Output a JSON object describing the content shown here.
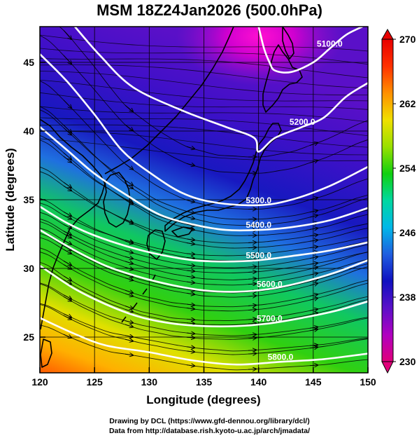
{
  "title": "MSM 18Z24Jan2026 (500.0hPa)",
  "x_axis": {
    "label": "Longitude (degrees)",
    "ticks": [
      "120",
      "125",
      "130",
      "135",
      "140",
      "145",
      "150"
    ],
    "range": [
      120,
      150
    ]
  },
  "y_axis": {
    "label": "Latitude  (degrees)",
    "ticks": [
      "25",
      "30",
      "35",
      "40",
      "45"
    ],
    "range": [
      22.4,
      47.6
    ]
  },
  "colorbar": {
    "ticks": [
      "270",
      "262",
      "254",
      "246",
      "238",
      "230"
    ],
    "range": [
      230,
      270
    ],
    "colors": [
      "#e0007a",
      "#b000c0",
      "#5a10c8",
      "#1010c0",
      "#1f5ee0",
      "#00b8e8",
      "#00d8a0",
      "#10d010",
      "#9ae000",
      "#f0e000",
      "#ff9000",
      "#ff3000",
      "#e80000"
    ]
  },
  "contours": [
    {
      "label": "5100.0",
      "points": [
        [
          140,
          47.6
        ],
        [
          140.5,
          46
        ],
        [
          141,
          45
        ],
        [
          141.5,
          44.4
        ],
        [
          143,
          44.3
        ],
        [
          145,
          45
        ],
        [
          146.5,
          46
        ],
        [
          148,
          47
        ],
        [
          149.5,
          47.6
        ]
      ]
    },
    {
      "label": "5200.0",
      "points": [
        [
          123.2,
          47.6
        ],
        [
          125.5,
          45.5
        ],
        [
          128.5,
          43.2
        ],
        [
          133,
          41.5
        ],
        [
          137,
          40.3
        ],
        [
          139.6,
          39.5
        ],
        [
          140,
          38.5
        ],
        [
          141.5,
          39.5
        ],
        [
          144,
          40.3
        ],
        [
          146,
          41
        ],
        [
          148,
          42.5
        ],
        [
          150,
          43.5
        ]
      ]
    },
    {
      "label": "5300.0",
      "points": [
        [
          120,
          45.6
        ],
        [
          122.5,
          43.6
        ],
        [
          125,
          41.2
        ],
        [
          127.5,
          38.6
        ],
        [
          130,
          37
        ],
        [
          133,
          35.5
        ],
        [
          136,
          34.8
        ],
        [
          140,
          34.6
        ],
        [
          143,
          35
        ],
        [
          146.5,
          36
        ],
        [
          150,
          37.4
        ]
      ]
    },
    {
      "label": "5400.0",
      "points": [
        [
          120,
          40.3
        ],
        [
          122.5,
          38.6
        ],
        [
          125,
          36.9
        ],
        [
          128,
          35.3
        ],
        [
          131,
          33.9
        ],
        [
          134,
          33.2
        ],
        [
          137,
          32.8
        ],
        [
          140,
          32.8
        ],
        [
          143,
          33
        ],
        [
          146.5,
          33.5
        ],
        [
          150,
          34.4
        ]
      ]
    },
    {
      "label": "5500.0",
      "points": [
        [
          120,
          34.5
        ],
        [
          122.5,
          33.3
        ],
        [
          125,
          32.4
        ],
        [
          128,
          31.6
        ],
        [
          131,
          31
        ],
        [
          134,
          30.6
        ],
        [
          137,
          30.5
        ],
        [
          140,
          30.6
        ],
        [
          143,
          30.9
        ],
        [
          146.5,
          31.3
        ],
        [
          150,
          31.9
        ]
      ]
    },
    {
      "label": "5600.0",
      "points": [
        [
          120,
          32.8
        ],
        [
          123,
          31.4
        ],
        [
          126,
          30.2
        ],
        [
          129,
          29.4
        ],
        [
          132,
          28.8
        ],
        [
          135,
          28.4
        ],
        [
          138,
          28.3
        ],
        [
          141,
          28.5
        ],
        [
          144,
          29
        ],
        [
          147,
          29.7
        ],
        [
          150,
          30.6
        ]
      ]
    },
    {
      "label": "5700.0",
      "points": [
        [
          120,
          30.2
        ],
        [
          123,
          28.6
        ],
        [
          126,
          27.4
        ],
        [
          129,
          26.5
        ],
        [
          132,
          26
        ],
        [
          135,
          25.8
        ],
        [
          138,
          25.8
        ],
        [
          141,
          26
        ],
        [
          144,
          26.4
        ],
        [
          147,
          26.9
        ],
        [
          150,
          27.6
        ]
      ]
    },
    {
      "label": "5800.0",
      "points": [
        [
          120,
          26.4
        ],
        [
          123,
          25.3
        ],
        [
          126,
          24.4
        ],
        [
          130,
          23.9
        ],
        [
          134,
          23.3
        ],
        [
          138,
          23
        ],
        [
          142,
          23.2
        ],
        [
          146,
          23.4
        ],
        [
          150,
          23.8
        ]
      ]
    }
  ],
  "credits": {
    "line1": "Drawing by DCL (https://www.gfd-dennou.org/library/dcl/)",
    "line2": "Data from http://database.rish.kyoto-u.ac.jp/arch/jmadata/"
  }
}
